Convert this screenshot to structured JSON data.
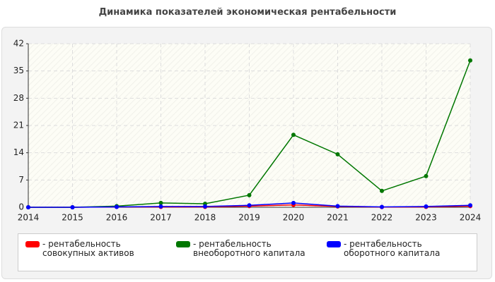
{
  "chart_data": {
    "type": "line",
    "title": "Динамика показателей экономическая рентабельности",
    "categories": [
      "2014",
      "2015",
      "2016",
      "2017",
      "2018",
      "2019",
      "2020",
      "2021",
      "2022",
      "2023",
      "2024"
    ],
    "series": [
      {
        "name": "- рентабельность совокупных активов",
        "color": "#ff0000",
        "values": [
          0,
          0,
          0.1,
          0.1,
          0.1,
          0.3,
          0.6,
          0.2,
          0.05,
          0.1,
          0.3
        ]
      },
      {
        "name": "- рентабельность внеоборотного капитала",
        "color": "#007700",
        "values": [
          0,
          0,
          0.3,
          1.1,
          0.9,
          3.1,
          18.6,
          13.6,
          4.2,
          8.0,
          37.7
        ]
      },
      {
        "name": "- рентабельность оборотного капитала",
        "color": "#0000ff",
        "values": [
          0,
          0,
          0.1,
          0.2,
          0.2,
          0.5,
          1.1,
          0.3,
          0.1,
          0.2,
          0.5
        ]
      }
    ],
    "ylim": [
      0,
      42
    ],
    "yticks": [
      0,
      7,
      14,
      21,
      28,
      35,
      42
    ],
    "grid": true
  }
}
